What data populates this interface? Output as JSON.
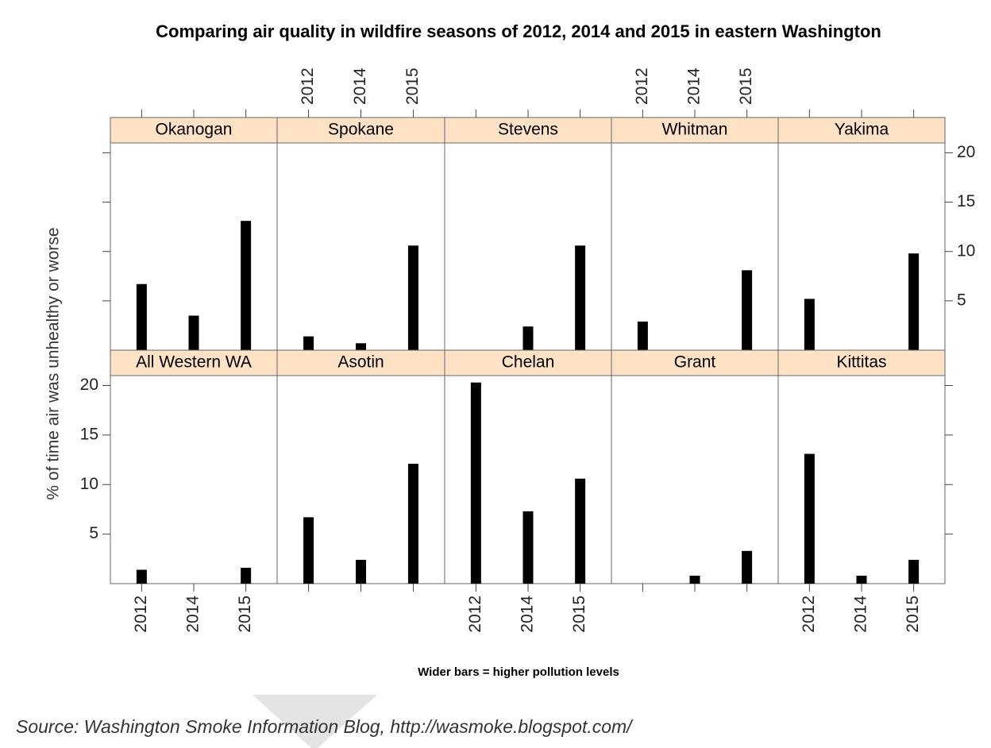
{
  "chart_data": {
    "type": "bar",
    "title": "Comparing air quality in wildfire seasons of 2012, 2014 and 2015 in eastern Washington",
    "y_label": "% of time air was unhealthy or worse",
    "annotation": "Wider bars = higher pollution levels",
    "source": "Source: Washington Smoke Information Blog, http://wasmoke.blogspot.com/",
    "categories": [
      "2012",
      "2014",
      "2015"
    ],
    "color": "#000000",
    "strip_color": "#fde2c6",
    "ylim": [
      0,
      21
    ],
    "yticks": [
      5,
      10,
      15,
      20
    ],
    "panels": [
      {
        "name": "Okanogan",
        "values": [
          6.7,
          3.5,
          13.1
        ]
      },
      {
        "name": "Spokane",
        "values": [
          1.4,
          0.7,
          10.6
        ]
      },
      {
        "name": "Stevens",
        "values": [
          0,
          2.4,
          10.6
        ]
      },
      {
        "name": "Whitman",
        "values": [
          2.9,
          0,
          8.1
        ]
      },
      {
        "name": "Yakima",
        "values": [
          5.2,
          0,
          9.8
        ]
      },
      {
        "name": "All Western WA",
        "values": [
          1.4,
          0,
          1.6
        ]
      },
      {
        "name": "Asotin",
        "values": [
          6.7,
          2.4,
          12.1
        ]
      },
      {
        "name": "Chelan",
        "values": [
          20.3,
          7.3,
          10.6
        ]
      },
      {
        "name": "Grant",
        "values": [
          0,
          0.8,
          3.3
        ]
      },
      {
        "name": "Kittitas",
        "values": [
          13.1,
          0.8,
          2.4
        ]
      }
    ]
  }
}
